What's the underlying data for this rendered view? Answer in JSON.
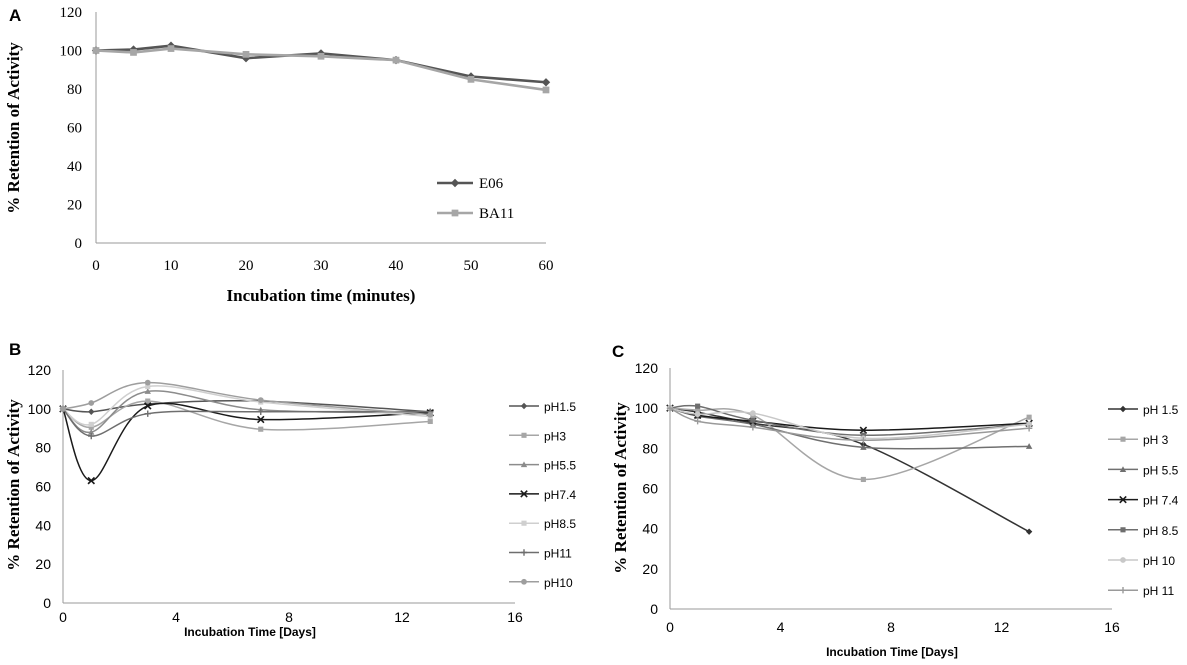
{
  "chart_data": [
    {
      "panel": "A",
      "type": "line",
      "title": "",
      "xlabel": "Incubation time (minutes)",
      "ylabel": "% Retention of Activity",
      "xlim": [
        0,
        60
      ],
      "ylim": [
        0,
        120
      ],
      "xticks": [
        0,
        10,
        20,
        30,
        40,
        50,
        60
      ],
      "yticks": [
        0,
        20,
        40,
        60,
        80,
        100,
        120
      ],
      "legend_position": "bottom-right",
      "series": [
        {
          "name": "E06",
          "color": "#555555",
          "marker": "diamond",
          "x": [
            0,
            5,
            10,
            20,
            30,
            40,
            50,
            60
          ],
          "y": [
            100,
            100.5,
            102.5,
            96,
            98.5,
            95,
            86.5,
            83.5
          ]
        },
        {
          "name": "BA11",
          "color": "#a6a6a6",
          "marker": "square",
          "x": [
            0,
            5,
            10,
            20,
            30,
            40,
            50,
            60
          ],
          "y": [
            100,
            99,
            101,
            98,
            97,
            95,
            85,
            79.5
          ]
        }
      ]
    },
    {
      "panel": "B",
      "type": "line",
      "title": "",
      "xlabel": "Incubation Time [Days]",
      "ylabel": "% Retention of Activity",
      "xlim": [
        0,
        16
      ],
      "ylim": [
        0,
        120
      ],
      "xticks": [
        0,
        4,
        8,
        12,
        16
      ],
      "yticks": [
        0,
        20,
        40,
        60,
        80,
        100,
        120
      ],
      "legend_position": "right",
      "series": [
        {
          "name": "pH1.5",
          "color": "#555555",
          "marker": "diamond",
          "x": [
            0,
            1,
            3,
            7,
            13
          ],
          "y": [
            100,
            98.5,
            102.5,
            104,
            98.5
          ]
        },
        {
          "name": "pH3",
          "color": "#a6a6a6",
          "marker": "square",
          "x": [
            0,
            1,
            3,
            7,
            13
          ],
          "y": [
            100,
            90.5,
            104,
            89.5,
            93.5
          ]
        },
        {
          "name": "pH5.5",
          "color": "#8c8c8c",
          "marker": "triangle",
          "x": [
            0,
            1,
            3,
            7,
            13
          ],
          "y": [
            100,
            88,
            109,
            99.5,
            98
          ]
        },
        {
          "name": "pH7.4",
          "color": "#1a1a1a",
          "marker": "x",
          "x": [
            0,
            1,
            3,
            7,
            13
          ],
          "y": [
            100,
            63,
            101.5,
            94.5,
            98
          ]
        },
        {
          "name": "pH8.5",
          "color": "#cfcfcf",
          "marker": "square",
          "x": [
            0,
            1,
            3,
            7,
            13
          ],
          "y": [
            100,
            92,
            111.5,
            103.5,
            96
          ]
        },
        {
          "name": "pH11",
          "color": "#6e6e6e",
          "marker": "plus",
          "x": [
            0,
            1,
            3,
            7,
            13
          ],
          "y": [
            100,
            86,
            97.5,
            98.5,
            98.5
          ]
        },
        {
          "name": "pH10",
          "color": "#9e9e9e",
          "marker": "circle",
          "x": [
            0,
            1,
            3,
            7,
            13
          ],
          "y": [
            100,
            103,
            113.5,
            104.5,
            97
          ]
        }
      ]
    },
    {
      "panel": "C",
      "type": "line",
      "title": "",
      "xlabel": "Incubation Time [Days]",
      "ylabel": "% Retention of Activity",
      "xlim": [
        0,
        16
      ],
      "ylim": [
        0,
        120
      ],
      "xticks": [
        0,
        4,
        8,
        12,
        16
      ],
      "yticks": [
        0,
        20,
        40,
        60,
        80,
        100,
        120
      ],
      "legend_position": "right",
      "series": [
        {
          "name": "pH 1.5",
          "color": "#333333",
          "marker": "diamond",
          "x": [
            0,
            1,
            3,
            7,
            13
          ],
          "y": [
            100,
            98,
            92.5,
            82,
            38.5
          ]
        },
        {
          "name": "pH 3",
          "color": "#a6a6a6",
          "marker": "square",
          "x": [
            0,
            1,
            3,
            7,
            13
          ],
          "y": [
            100,
            99,
            96.5,
            64.5,
            95.5
          ]
        },
        {
          "name": "pH 5.5",
          "color": "#707070",
          "marker": "triangle",
          "x": [
            0,
            1,
            3,
            7,
            13
          ],
          "y": [
            100,
            96,
            92,
            80.5,
            81
          ]
        },
        {
          "name": "pH 7.4",
          "color": "#1a1a1a",
          "marker": "x",
          "x": [
            0,
            1,
            3,
            7,
            13
          ],
          "y": [
            100,
            96.5,
            93.5,
            89,
            92.5
          ]
        },
        {
          "name": "pH 8.5",
          "color": "#6e6e6e",
          "marker": "square",
          "x": [
            0,
            1,
            3,
            7,
            13
          ],
          "y": [
            100,
            101,
            94,
            86.5,
            92
          ]
        },
        {
          "name": "pH 10",
          "color": "#c8c8c8",
          "marker": "circle",
          "x": [
            0,
            1,
            3,
            7,
            13
          ],
          "y": [
            100,
            97,
            97.5,
            85,
            92
          ]
        },
        {
          "name": "pH 11",
          "color": "#9a9a9a",
          "marker": "plus",
          "x": [
            0,
            1,
            3,
            7,
            13
          ],
          "y": [
            100,
            93.5,
            90.5,
            84,
            90
          ]
        }
      ]
    }
  ]
}
